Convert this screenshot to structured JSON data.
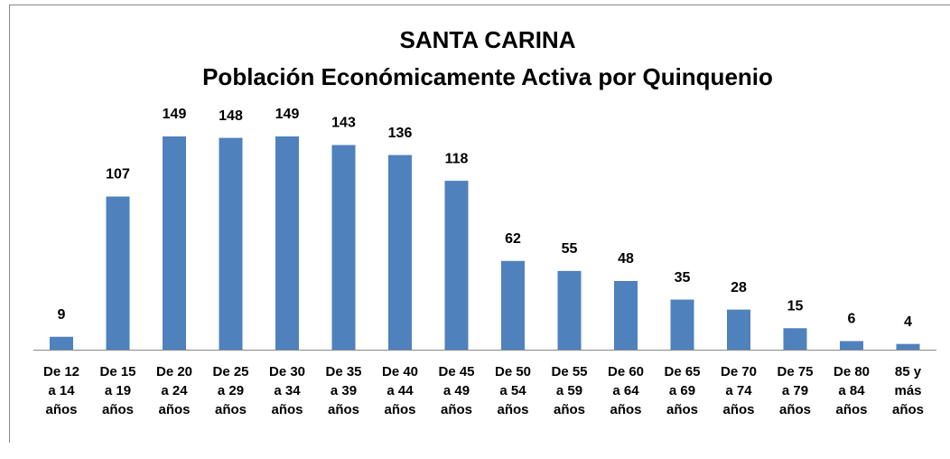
{
  "chart_data": {
    "type": "bar",
    "title": "SANTA CARINA",
    "subtitle": "Población Económicamente Activa por Quinquenio",
    "categories": [
      [
        "De 12",
        "a 14",
        "años"
      ],
      [
        "De 15",
        "a 19",
        "años"
      ],
      [
        "De 20",
        "a 24",
        "años"
      ],
      [
        "De 25",
        "a 29",
        "años"
      ],
      [
        "De 30",
        "a 34",
        "años"
      ],
      [
        "De 35",
        "a 39",
        "años"
      ],
      [
        "De 40",
        "a 44",
        "años"
      ],
      [
        "De 45",
        "a 49",
        "años"
      ],
      [
        "De 50",
        "a 54",
        "años"
      ],
      [
        "De 55",
        "a 59",
        "años"
      ],
      [
        "De 60",
        "a 64",
        "años"
      ],
      [
        "De 65",
        "a 69",
        "años"
      ],
      [
        "De 70",
        "a 74",
        "años"
      ],
      [
        "De 75",
        "a 79",
        "años"
      ],
      [
        "De 80",
        "a 84",
        "años"
      ],
      [
        "85 y",
        "más",
        "años"
      ]
    ],
    "values": [
      9,
      107,
      149,
      148,
      149,
      143,
      136,
      118,
      62,
      55,
      48,
      35,
      28,
      15,
      6,
      4
    ],
    "color": "#4f81bd"
  }
}
